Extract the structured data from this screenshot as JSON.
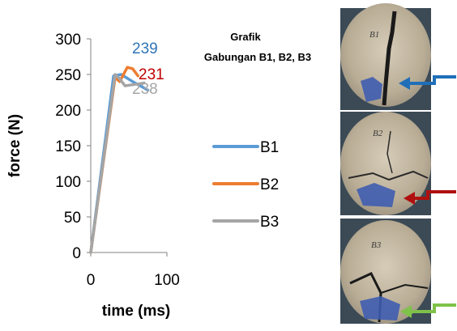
{
  "chart_data": {
    "type": "line",
    "title": [
      "Grafik",
      "Gabungan B1, B2, B3"
    ],
    "xlabel": "time (ms)",
    "ylabel": "force (N)",
    "xlim": [
      0,
      100
    ],
    "ylim": [
      0,
      300
    ],
    "x_ticks": [
      "0",
      "100"
    ],
    "y_ticks": [
      "0",
      "50",
      "100",
      "150",
      "200",
      "250",
      "300"
    ],
    "series": [
      {
        "name": "B1",
        "color": "#5b9bd5",
        "x": [
          0,
          30,
          40,
          55,
          75
        ],
        "y": [
          0,
          248,
          250,
          240,
          228
        ]
      },
      {
        "name": "B2",
        "color": "#ed7d31",
        "x": [
          0,
          32,
          38,
          48,
          55,
          62
        ],
        "y": [
          0,
          246,
          240,
          260,
          258,
          248
        ]
      },
      {
        "name": "B3",
        "color": "#a5a5a5",
        "x": [
          0,
          32,
          38,
          45,
          70
        ],
        "y": [
          0,
          250,
          244,
          234,
          238
        ]
      }
    ],
    "annotations": [
      {
        "text": "239",
        "color": "#2e75b6"
      },
      {
        "text": "231",
        "color": "#c00000"
      },
      {
        "text": "238",
        "color": "#a5a5a5"
      }
    ],
    "legend_position": "right"
  },
  "photos": [
    {
      "label": "B1",
      "arrow_color": "#1f6fb8"
    },
    {
      "label": "B2",
      "arrow_color": "#b00f0f"
    },
    {
      "label": "B3",
      "arrow_color": "#7fc24a"
    }
  ]
}
